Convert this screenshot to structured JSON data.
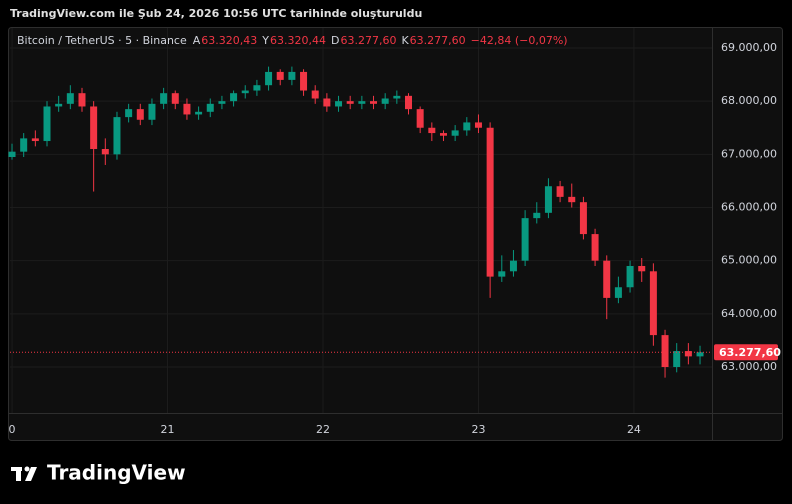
{
  "header": "TradingView.com ile Şub 24, 2026 10:56 UTC tarihinde oluşturuldu",
  "legend": {
    "name": "Bitcoin / TetherUS · 5 · Binance",
    "items": [
      {
        "key": "A",
        "label": "63.320,43"
      },
      {
        "key": "Y",
        "label": "63.320,44"
      },
      {
        "key": "D",
        "label": "63.277,60"
      },
      {
        "key": "K",
        "label": "63.277,60"
      }
    ],
    "change": "−42,84 (−0,07%)"
  },
  "logo": "TradingView",
  "chart_data": {
    "type": "candlestick",
    "up_color": "#089981",
    "down_color": "#f23645",
    "grid": true,
    "x": [
      20.0,
      20.075,
      20.15,
      20.225,
      20.3,
      20.375,
      20.45,
      20.525,
      20.6,
      20.675,
      20.75,
      20.825,
      20.9,
      20.975,
      21.05,
      21.125,
      21.2,
      21.275,
      21.35,
      21.425,
      21.5,
      21.575,
      21.65,
      21.725,
      21.8,
      21.875,
      21.95,
      22.025,
      22.1,
      22.175,
      22.25,
      22.325,
      22.4,
      22.475,
      22.55,
      22.625,
      22.7,
      22.775,
      22.85,
      22.925,
      23.0,
      23.075,
      23.15,
      23.225,
      23.3,
      23.375,
      23.45,
      23.525,
      23.6,
      23.675,
      23.75,
      23.825,
      23.9,
      23.975,
      24.05,
      24.125,
      24.2,
      24.275,
      24.35,
      24.425
    ],
    "open": [
      66950,
      67050,
      67300,
      67250,
      67900,
      67950,
      68150,
      67900,
      67100,
      67000,
      67700,
      67850,
      67650,
      67950,
      68150,
      67950,
      67750,
      67800,
      67950,
      68000,
      68150,
      68200,
      68300,
      68550,
      68400,
      68550,
      68200,
      68050,
      67900,
      68000,
      67950,
      68000,
      67950,
      68050,
      68100,
      67850,
      67500,
      67400,
      67350,
      67450,
      67600,
      67500,
      64700,
      64800,
      65000,
      65800,
      65900,
      66400,
      66200,
      66100,
      65500,
      65000,
      64300,
      64500,
      64900,
      64800,
      63600,
      63000,
      63300,
      63200
    ],
    "high": [
      67200,
      67400,
      67450,
      68000,
      68100,
      68300,
      68250,
      68000,
      67300,
      67800,
      67950,
      67950,
      68050,
      68250,
      68200,
      68050,
      67900,
      68050,
      68100,
      68200,
      68300,
      68400,
      68650,
      68600,
      68650,
      68600,
      68300,
      68150,
      68100,
      68100,
      68100,
      68100,
      68150,
      68200,
      68150,
      67900,
      67600,
      67450,
      67550,
      67700,
      67750,
      67600,
      65100,
      65200,
      65950,
      66100,
      66550,
      66500,
      66450,
      66200,
      65600,
      65100,
      64700,
      65000,
      65050,
      64950,
      63700,
      63450,
      63450,
      63400
    ],
    "low": [
      66900,
      66950,
      67150,
      67150,
      67800,
      67850,
      67800,
      66300,
      66800,
      66900,
      67600,
      67550,
      67550,
      67850,
      67850,
      67650,
      67650,
      67700,
      67850,
      67900,
      68050,
      68100,
      68200,
      68300,
      68300,
      68100,
      67950,
      67800,
      67800,
      67850,
      67850,
      67850,
      67850,
      67950,
      67750,
      67400,
      67250,
      67250,
      67250,
      67350,
      67400,
      64300,
      64600,
      64700,
      64900,
      65700,
      65800,
      66100,
      66000,
      65400,
      64900,
      63900,
      64200,
      64400,
      64600,
      63400,
      62800,
      62900,
      63050,
      63050
    ],
    "close": [
      67050,
      67300,
      67250,
      67900,
      67950,
      68150,
      67900,
      67100,
      67000,
      67700,
      67850,
      67650,
      67950,
      68150,
      67950,
      67750,
      67800,
      67950,
      68000,
      68150,
      68200,
      68300,
      68550,
      68400,
      68550,
      68200,
      68050,
      67900,
      68000,
      67950,
      68000,
      67950,
      68050,
      68100,
      67850,
      67500,
      67400,
      67350,
      67450,
      67600,
      67500,
      64700,
      64800,
      65000,
      65800,
      65900,
      66400,
      66200,
      66100,
      65500,
      65000,
      64300,
      64500,
      64900,
      64800,
      63600,
      63000,
      63300,
      63200,
      63277.6
    ],
    "xlim": [
      19.987,
      24.502
    ],
    "xticks": [
      {
        "value": 20,
        "label": "0"
      },
      21,
      22,
      23,
      24
    ],
    "ylim": [
      62135,
      69376
    ],
    "yticks": [
      {
        "value": 63000,
        "label": "63.000,00"
      },
      {
        "value": 64000,
        "label": "64.000,00"
      },
      {
        "value": 65000,
        "label": "65.000,00"
      },
      {
        "value": 66000,
        "label": "66.000,00"
      },
      {
        "value": 67000,
        "label": "67.000,00"
      },
      {
        "value": 68000,
        "label": "68.000,00"
      },
      {
        "value": 69000,
        "label": "69.000,00"
      }
    ],
    "last_price": {
      "value": 63277.6,
      "label": "63.277,60"
    }
  }
}
